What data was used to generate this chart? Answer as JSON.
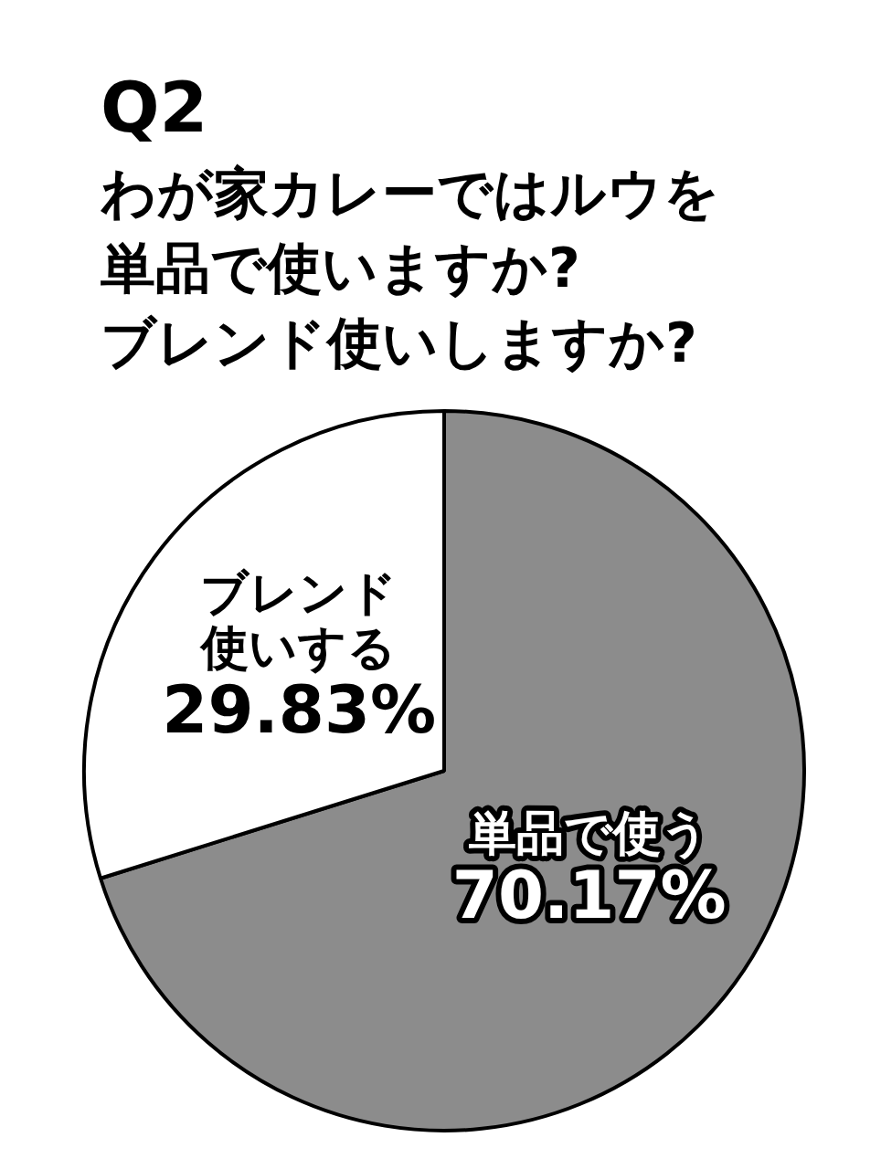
{
  "chart_data": {
    "type": "pie",
    "title": "Q2",
    "subtitle": "わが家カレーではルウを単品で使いますか?ブレンド使いしますか?",
    "categories": [
      "単品で使う",
      "ブレンド使いする"
    ],
    "values": [
      70.17,
      29.83
    ],
    "colors": [
      "#8c8c8c",
      "#ffffff"
    ],
    "value_labels": [
      "70.17%",
      "29.83%"
    ],
    "legend": false
  }
}
